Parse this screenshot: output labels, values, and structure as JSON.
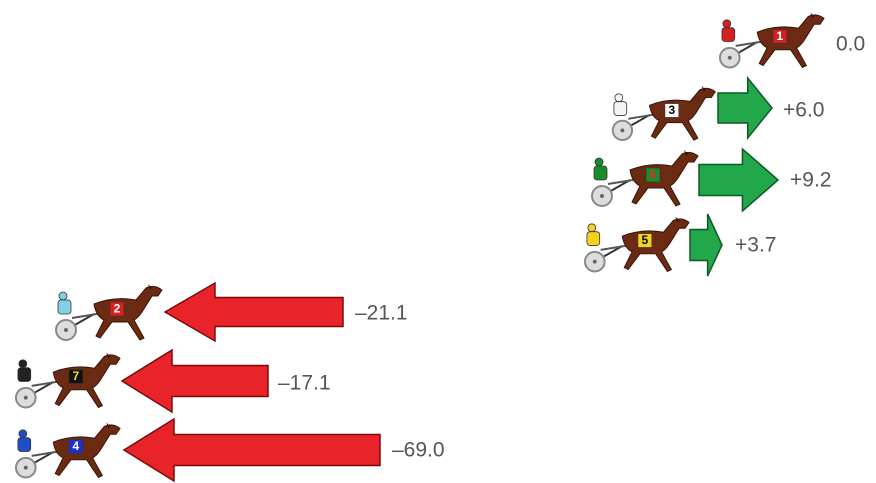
{
  "nodes": [
    {
      "number": "1",
      "value": "0.0"
    },
    {
      "number": "3",
      "value": "+6.0"
    },
    {
      "number": "6",
      "value": "+9.2"
    },
    {
      "number": "5",
      "value": "+3.7"
    },
    {
      "number": "2",
      "value": "–21.1"
    },
    {
      "number": "7",
      "value": "–17.1"
    },
    {
      "number": "4",
      "value": "–69.0"
    }
  ]
}
